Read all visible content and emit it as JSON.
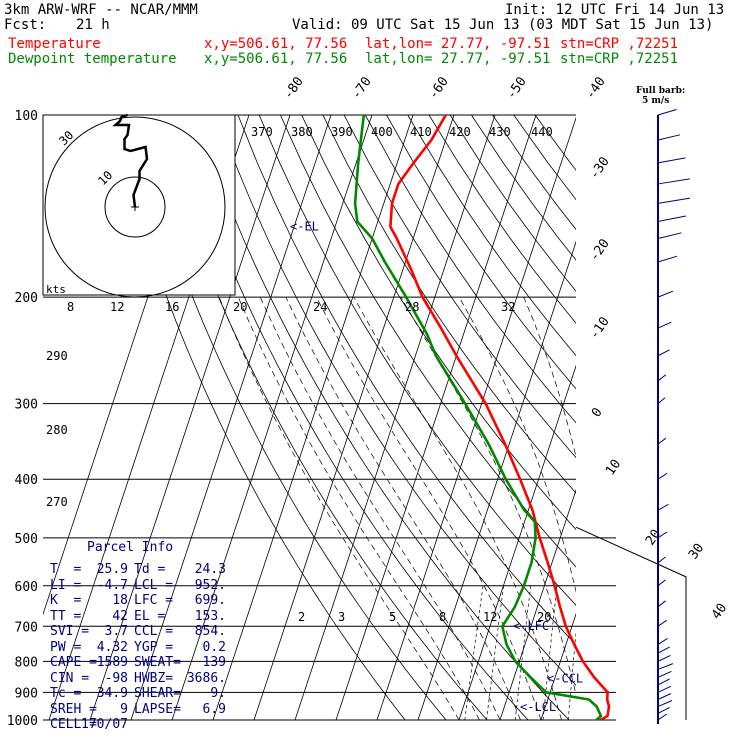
{
  "header": {
    "model": "3km ARW-WRF -- NCAR/MMM",
    "init": "Init: 12 UTC Fri 14 Jun 13",
    "fcst_label": "Fcst:",
    "fcst_value": "21 h",
    "valid": "Valid: 09 UTC Sat 15 Jun 13 (03 MDT Sat 15 Jun 13)",
    "temp_line": {
      "label": "Temperature",
      "xy": "x,y=506.61, 77.56",
      "latlon": "lat,lon= 27.77, -97.51",
      "stn": "stn=CRP ,72251",
      "color": "#ff0000"
    },
    "dew_line": {
      "label": "Dewpoint temperature",
      "xy": "x,y=506.61, 77.56",
      "latlon": "lat,lon= 27.77, -97.51",
      "stn": "stn=CRP ,72251",
      "color": "#008800"
    }
  },
  "barb_legend": {
    "line1": "Full barb:",
    "line2": "5 m/s"
  },
  "parcel_info": {
    "title": "Parcel Info",
    "rows": [
      [
        "T  =",
        "25.9",
        "Td =",
        "24.3"
      ],
      [
        "LI =",
        "-4.7",
        "LCL =",
        "952."
      ],
      [
        "K  =",
        "18",
        "LFC =",
        "699."
      ],
      [
        "TT =",
        "42",
        "EL =",
        "153."
      ],
      [
        "SVI =",
        "3.7",
        "CCL =",
        "854."
      ],
      [
        "PW =",
        "4.32",
        "YGP =",
        "0.2"
      ],
      [
        "CAPE =",
        "1589",
        "SWEAT=",
        "139"
      ],
      [
        "CIN =",
        "-98",
        "HWBZ=",
        "3686."
      ],
      [
        "Tc =",
        "34.9",
        "SHEAR=",
        "9."
      ],
      [
        "SREH =",
        "9",
        "LAPSE=",
        "6.9"
      ],
      [
        "CELL =",
        "170/07",
        "",
        ""
      ]
    ]
  },
  "chart_data": {
    "type": "line",
    "title": "",
    "ylabel": "",
    "xlabel": "",
    "pressure_ticks": [
      "100",
      "200",
      "300",
      "400",
      "500",
      "600",
      "700",
      "800",
      "900",
      "1000"
    ],
    "isotherm_labels": [
      "-80",
      "-70",
      "-60",
      "-50",
      "-40",
      "-30",
      "-20",
      "-10",
      "0",
      "10",
      "20",
      "30",
      "40"
    ],
    "theta_labels": [
      "370",
      "380",
      "390",
      "400",
      "410",
      "420",
      "430",
      "440"
    ],
    "dry_adiabat_labels": [
      "290",
      "280",
      "270"
    ],
    "mixing_ratio_labels": [
      "2",
      "3",
      "5",
      "8",
      "12",
      "20"
    ],
    "hodograph": {
      "speed_ring_labels": [
        "30",
        "10"
      ],
      "axis_unit": "kts",
      "axis_labels": [
        "8",
        "12",
        "16",
        "20",
        "24",
        "28",
        "32"
      ]
    },
    "levels": [
      {
        "label": "<-EL",
        "p": 153
      },
      {
        "label": "<-LFC",
        "p": 699
      },
      {
        "label": "<-CCL",
        "p": 854
      },
      {
        "label": "<-LCL",
        "p": 952
      }
    ],
    "series": [
      {
        "name": "Temperature",
        "color": "#ff0000",
        "points": [
          [
            1000,
            24.5
          ],
          [
            985,
            25.9
          ],
          [
            950,
            25.5
          ],
          [
            925,
            24.5
          ],
          [
            900,
            24.0
          ],
          [
            850,
            19.5
          ],
          [
            800,
            15.5
          ],
          [
            750,
            12.0
          ],
          [
            700,
            8.5
          ],
          [
            650,
            5.5
          ],
          [
            600,
            2.5
          ],
          [
            550,
            -1.0
          ],
          [
            500,
            -5.0
          ],
          [
            450,
            -9.0
          ],
          [
            400,
            -14.5
          ],
          [
            350,
            -21.0
          ],
          [
            300,
            -29.0
          ],
          [
            250,
            -40.0
          ],
          [
            225,
            -46.0
          ],
          [
            200,
            -53.0
          ],
          [
            180,
            -58.0
          ],
          [
            160,
            -64.0
          ],
          [
            153,
            -66.5
          ],
          [
            140,
            -68.0
          ],
          [
            130,
            -68.0
          ],
          [
            120,
            -66.0
          ],
          [
            110,
            -63.5
          ],
          [
            100,
            -62.0
          ]
        ]
      },
      {
        "name": "Dewpoint temperature",
        "color": "#008800",
        "points": [
          [
            1000,
            23.5
          ],
          [
            985,
            24.3
          ],
          [
            950,
            22.5
          ],
          [
            925,
            20.0
          ],
          [
            900,
            9.0
          ],
          [
            850,
            4.0
          ],
          [
            800,
            -1.0
          ],
          [
            750,
            -4.5
          ],
          [
            700,
            -7.0
          ],
          [
            650,
            -5.5
          ],
          [
            600,
            -5.0
          ],
          [
            550,
            -5.0
          ],
          [
            500,
            -6.0
          ],
          [
            470,
            -7.5
          ],
          [
            450,
            -11.0
          ],
          [
            400,
            -18.0
          ],
          [
            350,
            -25.0
          ],
          [
            300,
            -34.0
          ],
          [
            250,
            -45.0
          ],
          [
            230,
            -49.0
          ],
          [
            200,
            -57.0
          ],
          [
            175,
            -65.0
          ],
          [
            160,
            -70.0
          ],
          [
            150,
            -75.0
          ],
          [
            140,
            -77.0
          ],
          [
            120,
            -79.5
          ],
          [
            100,
            -82.0
          ]
        ]
      }
    ],
    "hodograph_trace": [
      [
        0,
        0
      ],
      [
        -0.5,
        -6
      ],
      [
        1.5,
        -14
      ],
      [
        1.5,
        -18
      ],
      [
        4.0,
        -24
      ],
      [
        3.5,
        -30
      ],
      [
        -1.5,
        -28
      ],
      [
        -3.5,
        -29
      ],
      [
        -3.5,
        -34
      ],
      [
        -2.5,
        -36
      ],
      [
        -2,
        -41
      ],
      [
        -5,
        -41
      ],
      [
        -6.5,
        -41
      ],
      [
        -5,
        -43
      ],
      [
        -4.5,
        -45
      ],
      [
        -2.5,
        -46
      ]
    ],
    "winds": [
      {
        "p": 1000,
        "dir": 170,
        "spd": 5
      },
      {
        "p": 975,
        "dir": 175,
        "spd": 7
      },
      {
        "p": 950,
        "dir": 180,
        "spd": 8
      },
      {
        "p": 925,
        "dir": 185,
        "spd": 6
      },
      {
        "p": 900,
        "dir": 190,
        "spd": 5
      },
      {
        "p": 875,
        "dir": 190,
        "spd": 4
      },
      {
        "p": 850,
        "dir": 200,
        "spd": 4
      },
      {
        "p": 825,
        "dir": 200,
        "spd": 5
      },
      {
        "p": 800,
        "dir": 195,
        "spd": 4
      },
      {
        "p": 775,
        "dir": 190,
        "spd": 4
      },
      {
        "p": 750,
        "dir": 185,
        "spd": 3
      },
      {
        "p": 700,
        "dir": 180,
        "spd": 3
      },
      {
        "p": 650,
        "dir": 180,
        "spd": 2
      },
      {
        "p": 600,
        "dir": 180,
        "spd": 2
      },
      {
        "p": 550,
        "dir": 180,
        "spd": 2
      },
      {
        "p": 500,
        "dir": 190,
        "spd": 2
      },
      {
        "p": 450,
        "dir": 200,
        "spd": 2
      },
      {
        "p": 400,
        "dir": 190,
        "spd": 2
      },
      {
        "p": 350,
        "dir": 175,
        "spd": 3
      },
      {
        "p": 300,
        "dir": 170,
        "spd": 3
      },
      {
        "p": 275,
        "dir": 175,
        "spd": 3
      },
      {
        "p": 250,
        "dir": 190,
        "spd": 4
      },
      {
        "p": 225,
        "dir": 200,
        "spd": 4
      },
      {
        "p": 200,
        "dir": 200,
        "spd": 5
      },
      {
        "p": 175,
        "dir": 205,
        "spd": 7
      },
      {
        "p": 160,
        "dir": 210,
        "spd": 9
      },
      {
        "p": 150,
        "dir": 220,
        "spd": 10
      },
      {
        "p": 140,
        "dir": 230,
        "spd": 11
      },
      {
        "p": 130,
        "dir": 240,
        "spd": 10
      },
      {
        "p": 120,
        "dir": 240,
        "spd": 8
      },
      {
        "p": 110,
        "dir": 230,
        "spd": 6
      },
      {
        "p": 100,
        "dir": 220,
        "spd": 5
      }
    ]
  }
}
